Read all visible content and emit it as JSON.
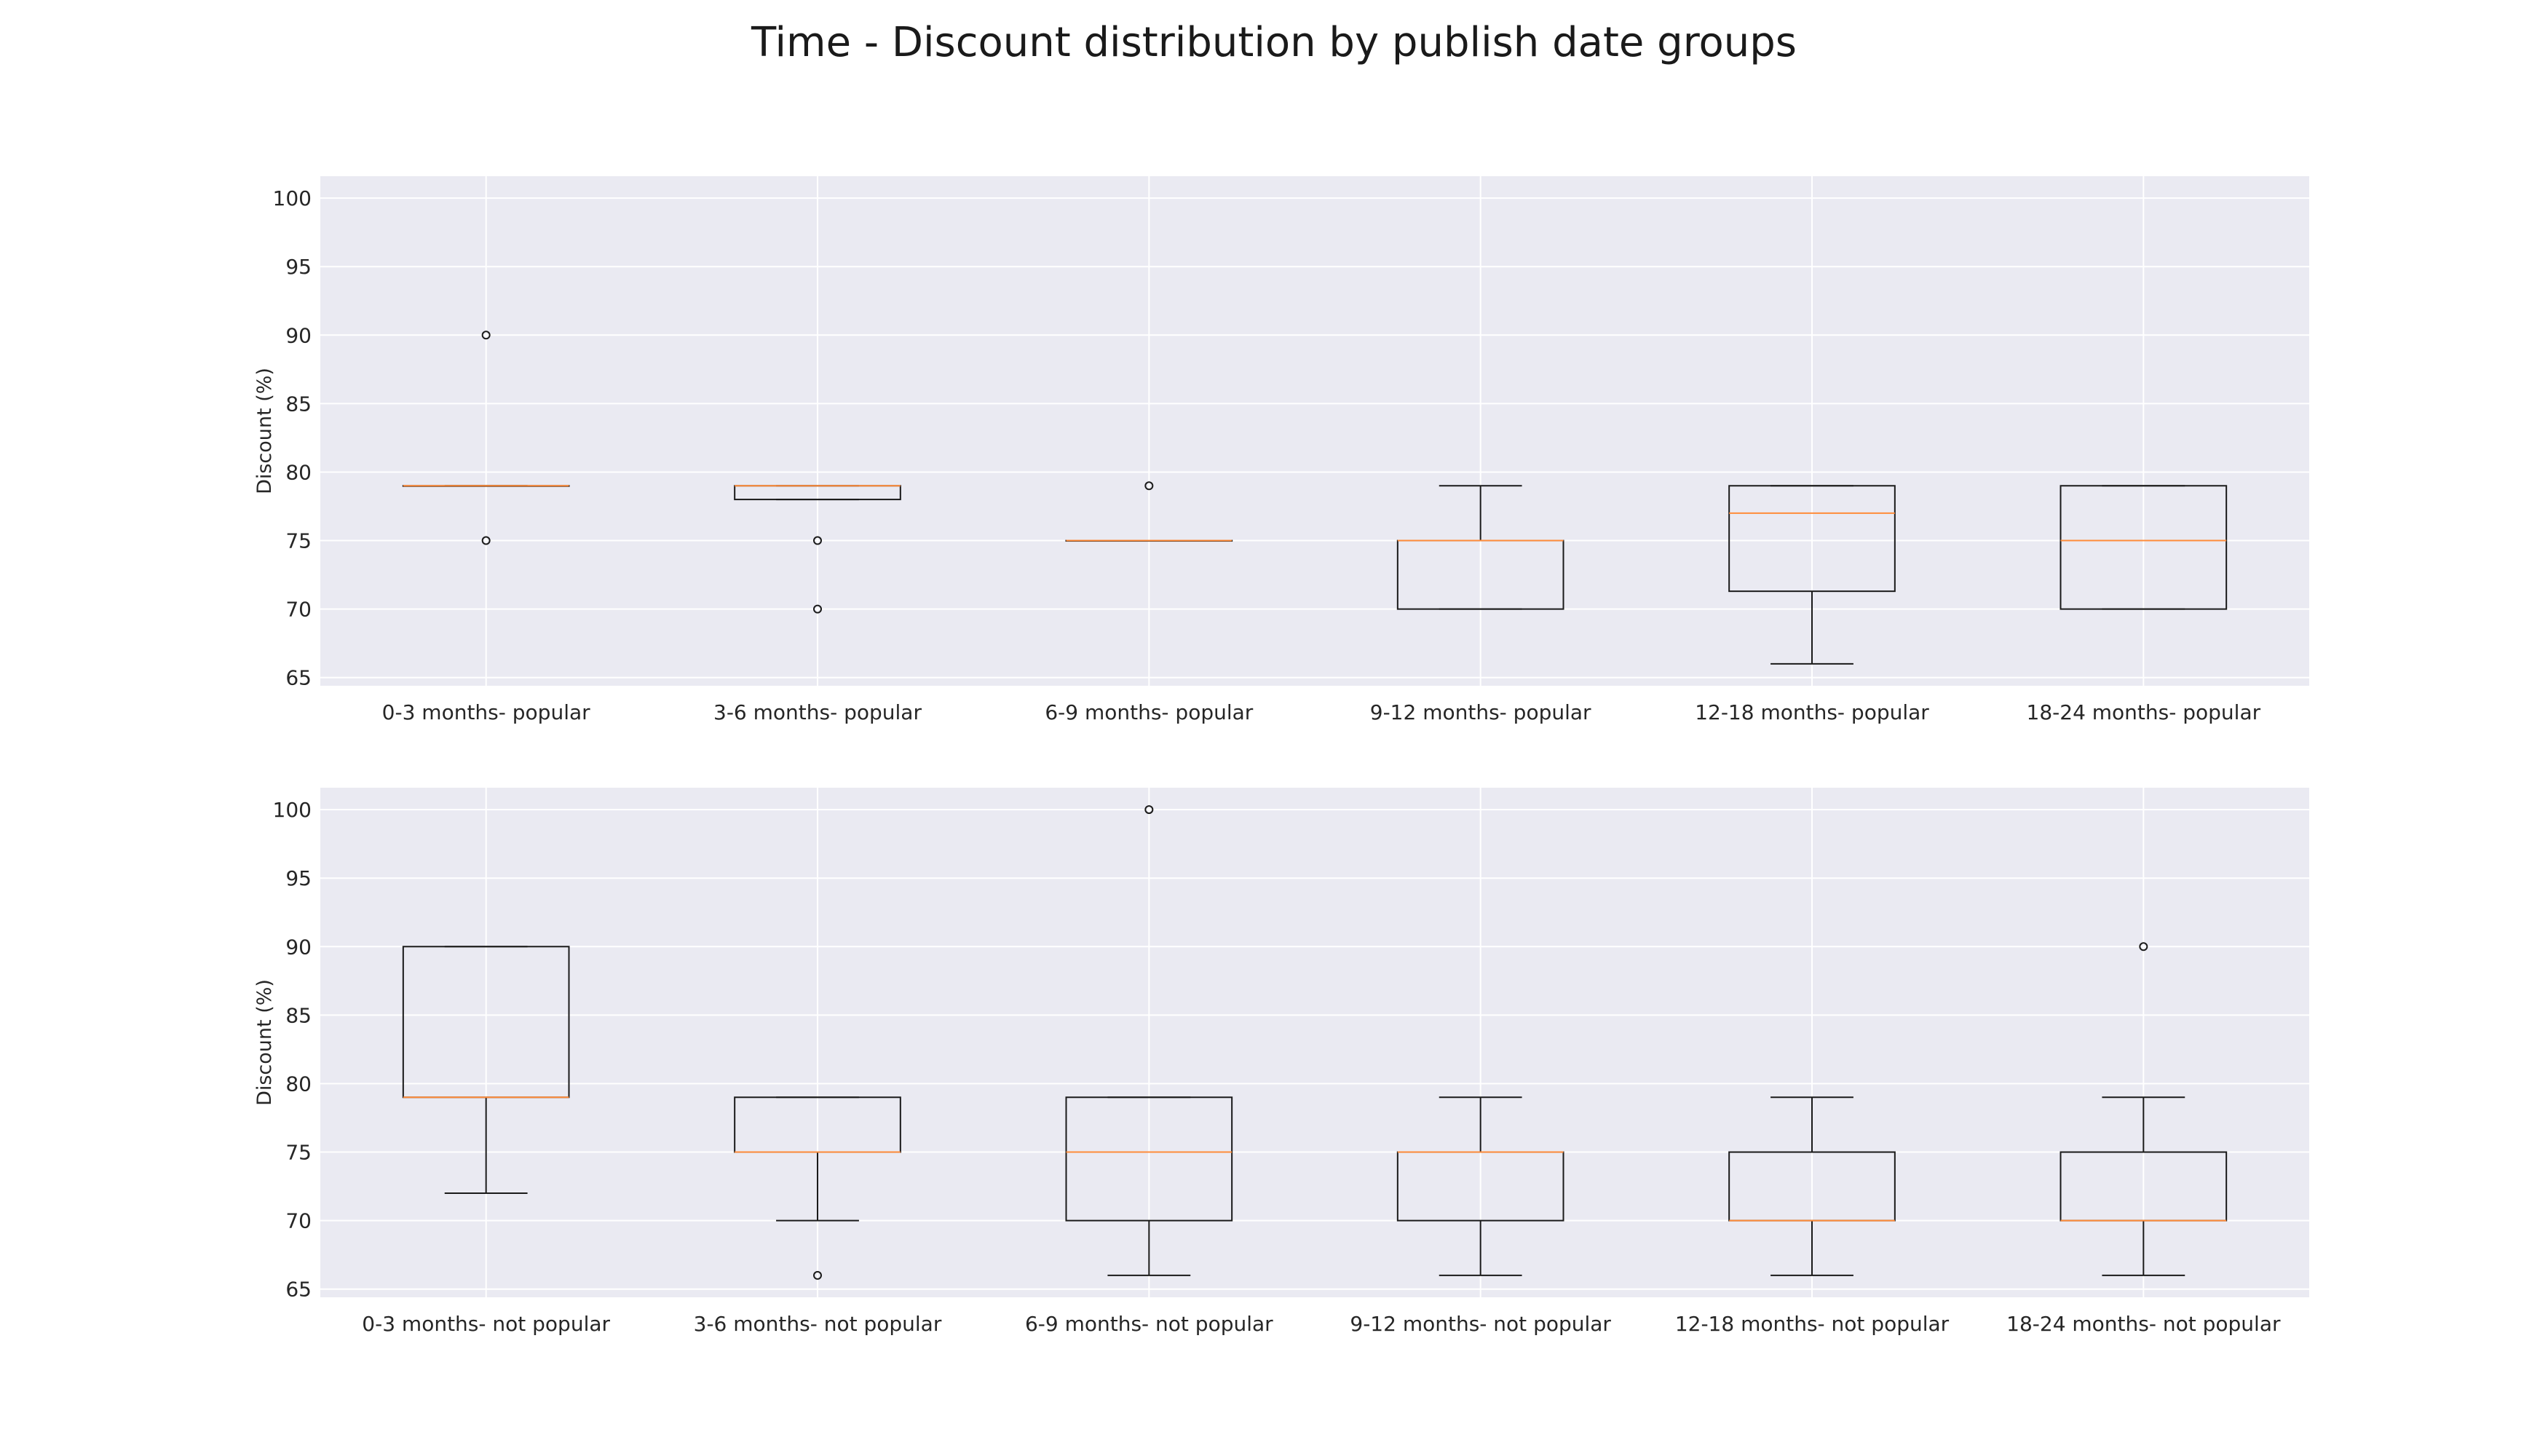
{
  "chart_data": [
    {
      "type": "box",
      "title": "Time - Discount distribution by publish date groups",
      "ylabel": "Discount (%)",
      "ylim": [
        64.4,
        101.6
      ],
      "yticks": [
        65,
        70,
        75,
        80,
        85,
        90,
        95,
        100
      ],
      "grid": true,
      "categories": [
        "0-3 months- popular",
        "3-6 months- popular",
        "6-9 months- popular",
        "9-12 months- popular",
        "12-18 months- popular",
        "18-24 months- popular"
      ],
      "boxes": [
        {
          "whisker_low": 79,
          "q1": 79,
          "median": 79,
          "q3": 79,
          "whisker_high": 79,
          "outliers": [
            75,
            90
          ]
        },
        {
          "whisker_low": 78,
          "q1": 78,
          "median": 79,
          "q3": 79,
          "whisker_high": 79,
          "outliers": [
            75,
            70
          ]
        },
        {
          "whisker_low": 75,
          "q1": 75,
          "median": 75,
          "q3": 75,
          "whisker_high": 75,
          "outliers": [
            79
          ]
        },
        {
          "whisker_low": 70,
          "q1": 70,
          "median": 75,
          "q3": 75,
          "whisker_high": 79,
          "outliers": []
        },
        {
          "whisker_low": 66,
          "q1": 71.3,
          "median": 77,
          "q3": 79,
          "whisker_high": 79,
          "outliers": []
        },
        {
          "whisker_low": 70,
          "q1": 70,
          "median": 75,
          "q3": 79,
          "whisker_high": 79,
          "outliers": []
        }
      ]
    },
    {
      "type": "box",
      "ylabel": "Discount (%)",
      "ylim": [
        64.4,
        101.6
      ],
      "yticks": [
        65,
        70,
        75,
        80,
        85,
        90,
        95,
        100
      ],
      "grid": true,
      "categories": [
        "0-3 months- not popular",
        "3-6 months- not popular",
        "6-9 months- not popular",
        "9-12 months- not popular",
        "12-18 months- not popular",
        "18-24 months- not popular"
      ],
      "boxes": [
        {
          "whisker_low": 72,
          "q1": 79,
          "median": 79,
          "q3": 90,
          "whisker_high": 90,
          "outliers": []
        },
        {
          "whisker_low": 70,
          "q1": 75,
          "median": 75,
          "q3": 79,
          "whisker_high": 79,
          "outliers": [
            66
          ]
        },
        {
          "whisker_low": 66,
          "q1": 70,
          "median": 75,
          "q3": 79,
          "whisker_high": 79,
          "outliers": [
            100
          ]
        },
        {
          "whisker_low": 66,
          "q1": 70,
          "median": 75,
          "q3": 75,
          "whisker_high": 79,
          "outliers": []
        },
        {
          "whisker_low": 66,
          "q1": 70,
          "median": 70,
          "q3": 75,
          "whisker_high": 79,
          "outliers": []
        },
        {
          "whisker_low": 66,
          "q1": 70,
          "median": 70,
          "q3": 75,
          "whisker_high": 79,
          "outliers": [
            90
          ]
        }
      ]
    }
  ],
  "colors": {
    "plot_background": "#eaeaf2",
    "grid": "#ffffff",
    "box_edge": "#1a1a1a",
    "median": "#ff8c3a"
  }
}
